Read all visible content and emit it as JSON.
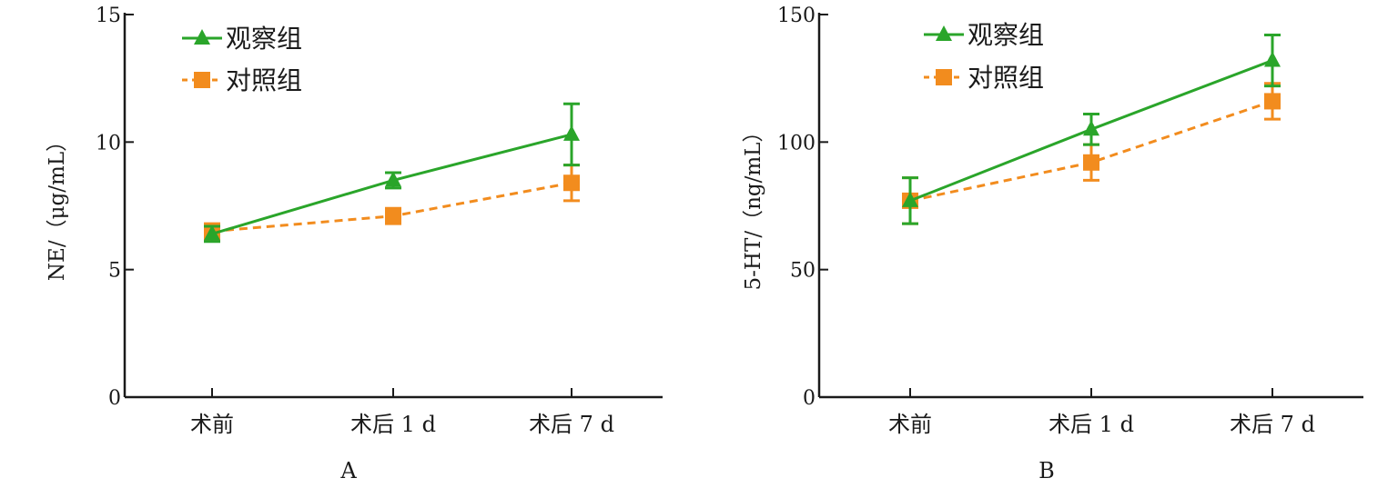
{
  "chart_data": [
    {
      "type": "line",
      "panel_label": "A",
      "ylabel": "NE/（μg/mL）",
      "categories": [
        "术前",
        "术后 1 d",
        "术后 7 d"
      ],
      "ylim": [
        0,
        15
      ],
      "yticks": [
        0,
        5,
        10,
        15
      ],
      "grid": false,
      "legend_position": "top-left",
      "series": [
        {
          "name": "观察组",
          "marker": "triangle",
          "line": "solid",
          "color": "#2aa52a",
          "values": [
            6.4,
            8.5,
            10.3
          ],
          "errors": [
            0.3,
            0.3,
            1.2
          ]
        },
        {
          "name": "对照组",
          "marker": "square",
          "line": "dashed",
          "color": "#f28c1e",
          "values": [
            6.5,
            7.1,
            8.4
          ],
          "errors": [
            0.3,
            0.3,
            0.7
          ]
        }
      ]
    },
    {
      "type": "line",
      "panel_label": "B",
      "ylabel": "5-HT/（ng/mL）",
      "categories": [
        "术前",
        "术后 1 d",
        "术后 7 d"
      ],
      "ylim": [
        0,
        150
      ],
      "yticks": [
        0,
        50,
        100,
        150
      ],
      "grid": false,
      "legend_position": "top-left",
      "series": [
        {
          "name": "观察组",
          "marker": "triangle",
          "line": "solid",
          "color": "#2aa52a",
          "values": [
            77,
            105,
            132
          ],
          "errors": [
            9,
            6,
            10
          ]
        },
        {
          "name": "对照组",
          "marker": "square",
          "line": "dashed",
          "color": "#f28c1e",
          "values": [
            77,
            92,
            116
          ],
          "errors": [
            9,
            7,
            7
          ]
        }
      ]
    }
  ]
}
